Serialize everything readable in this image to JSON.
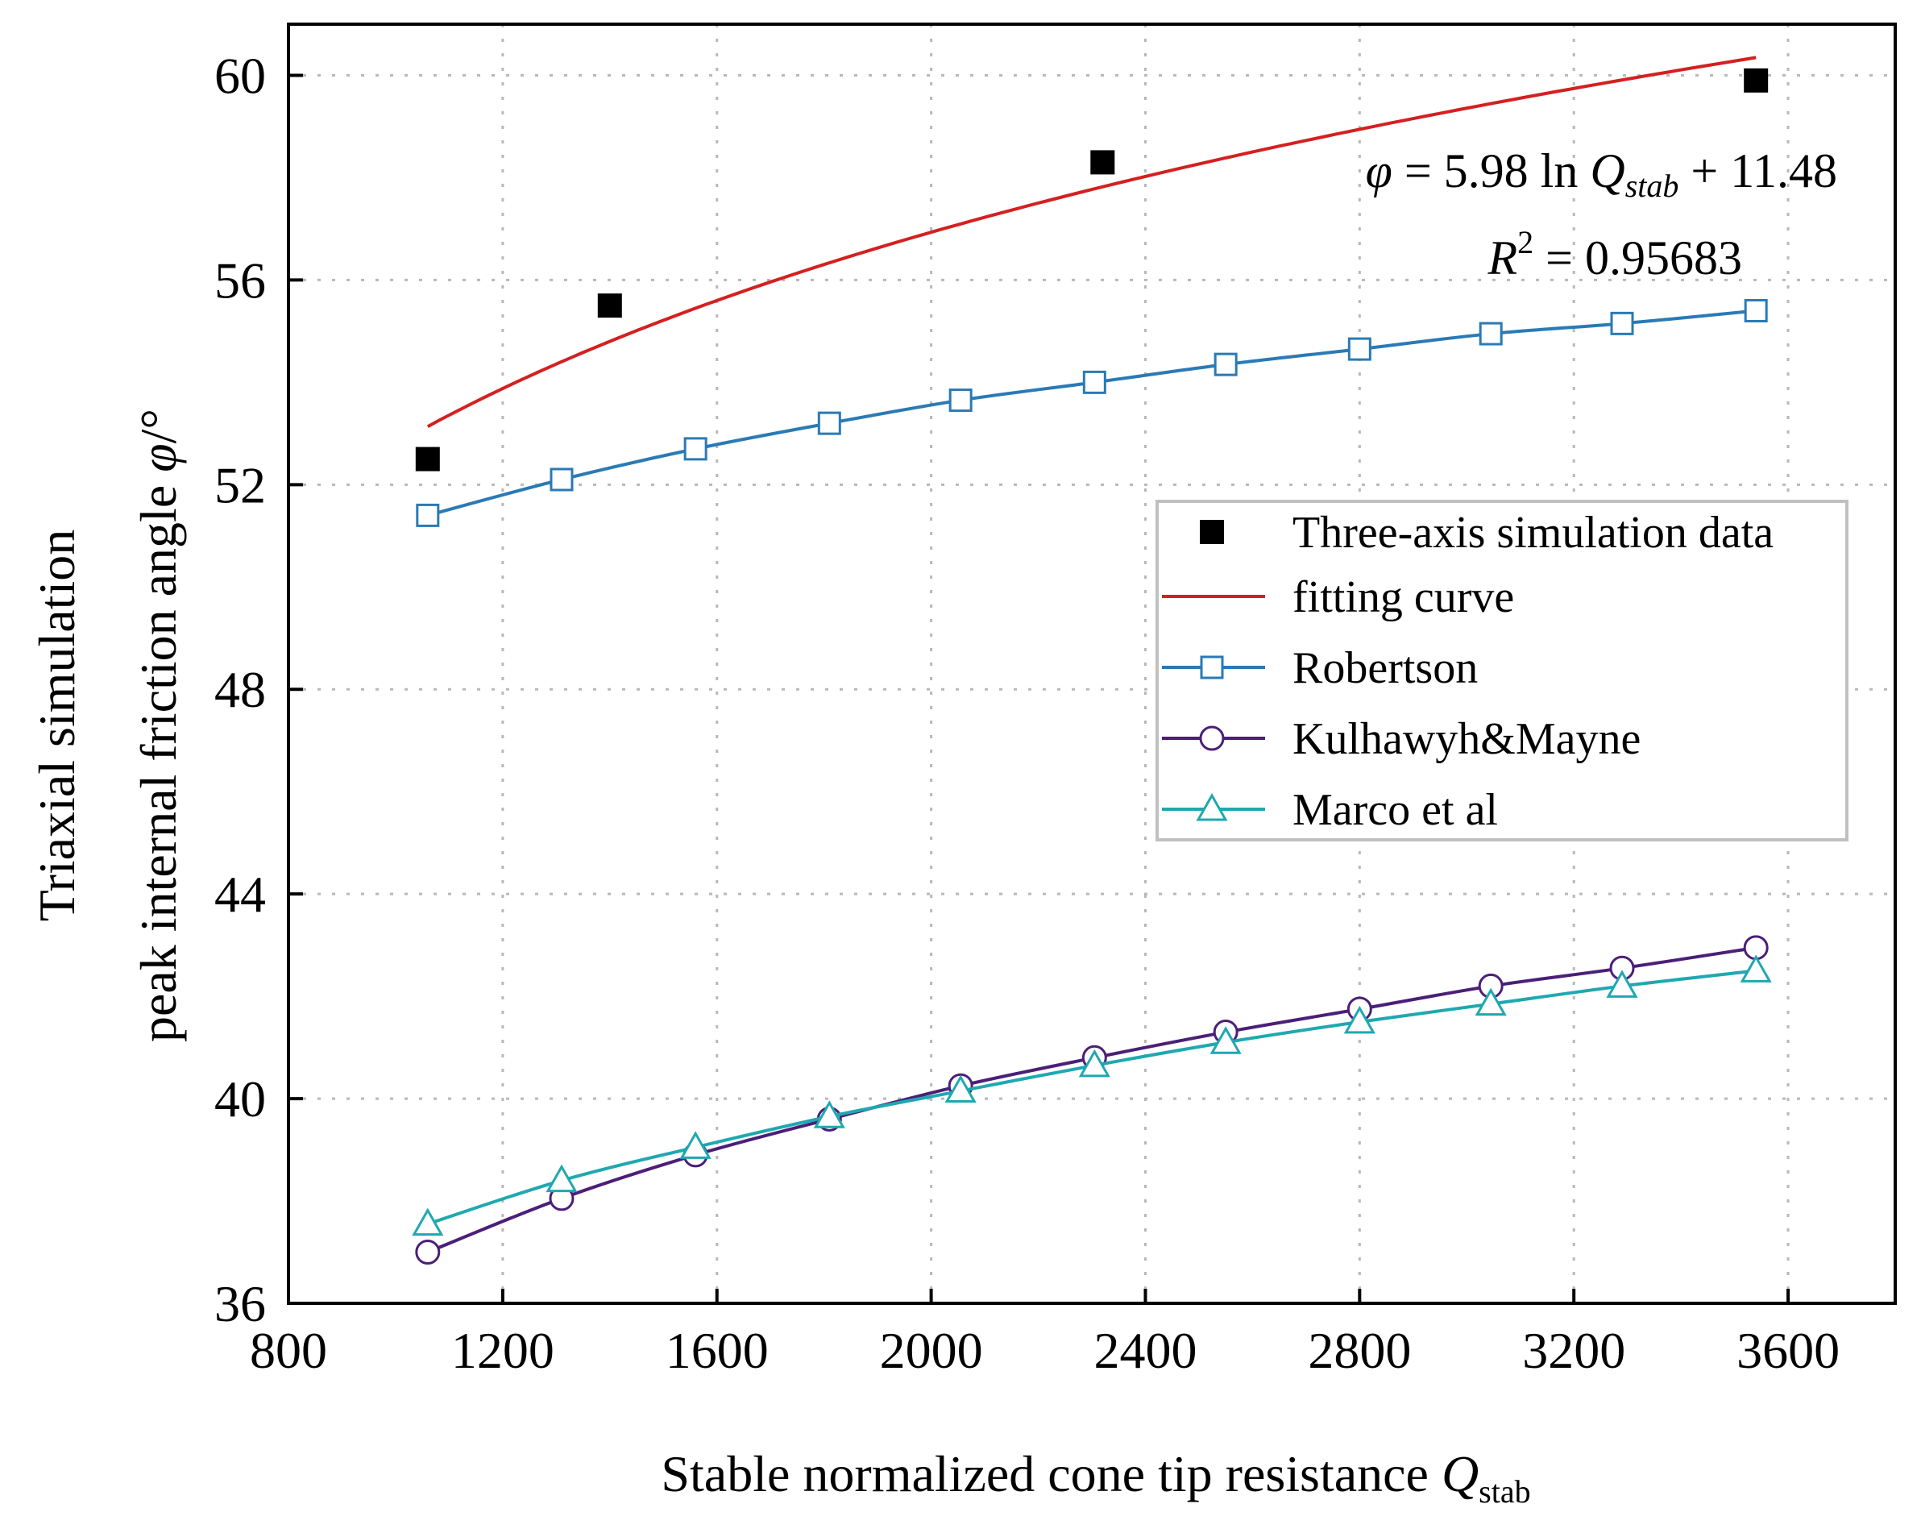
{
  "chart_data": {
    "type": "line",
    "title": "",
    "xlabel": "Stable normalized cone tip resistance",
    "xlabel_symbol": "Q",
    "xlabel_sub": "stab",
    "ylabel_line1": "Triaxial simulation",
    "ylabel_line2": "peak internal friction angle",
    "ylabel_symbol": "φ",
    "ylabel_unit": "/°",
    "xlim": [
      800,
      3800
    ],
    "ylim": [
      36,
      61
    ],
    "xticks": [
      800,
      1200,
      1600,
      2000,
      2400,
      2800,
      3200,
      3600
    ],
    "yticks": [
      36,
      40,
      44,
      48,
      52,
      56,
      60
    ],
    "grid": true,
    "legend_position": "right",
    "annotation": {
      "eq_lhs": "φ",
      "eq_rhs_1": " = 5.98 ln ",
      "eq_q": "Q",
      "eq_sub": "stab",
      "eq_rhs_2": " + 11.48",
      "r2_r": "R",
      "r2_exp": "2",
      "r2_rhs": " = 0.95683"
    },
    "series": [
      {
        "name": "Three-axis simulation data",
        "kind": "scatter",
        "color": "#000000",
        "x": [
          1060,
          1400,
          2320,
          3540
        ],
        "y": [
          52.5,
          55.5,
          58.3,
          59.9
        ]
      },
      {
        "name": "fitting curve",
        "kind": "function",
        "color": "#d42020",
        "a": 5.98,
        "b": 11.48,
        "x_range": [
          1060,
          3540
        ]
      },
      {
        "name": "Robertson",
        "kind": "line-marker",
        "marker": "square",
        "color": "#2a7ab5",
        "x": [
          1060,
          1310,
          1560,
          1810,
          2055,
          2305,
          2550,
          2800,
          3045,
          3290,
          3540
        ],
        "y": [
          51.4,
          52.1,
          52.7,
          53.2,
          53.65,
          54.0,
          54.35,
          54.65,
          54.95,
          55.15,
          55.4
        ]
      },
      {
        "name": "Kulhawyh&Mayne",
        "kind": "line-marker",
        "marker": "circle",
        "color": "#4b1f78",
        "x": [
          1060,
          1310,
          1560,
          1810,
          2055,
          2305,
          2550,
          2800,
          3045,
          3290,
          3540
        ],
        "y": [
          37.0,
          38.05,
          38.9,
          39.6,
          40.25,
          40.8,
          41.3,
          41.75,
          42.2,
          42.55,
          42.95
        ]
      },
      {
        "name": "Marco et al",
        "kind": "line-marker",
        "marker": "triangle",
        "color": "#1fa8b0",
        "x": [
          1060,
          1310,
          1560,
          1810,
          2055,
          2305,
          2550,
          2800,
          3045,
          3290,
          3540
        ],
        "y": [
          37.55,
          38.4,
          39.05,
          39.65,
          40.15,
          40.65,
          41.1,
          41.5,
          41.85,
          42.2,
          42.5
        ]
      }
    ]
  }
}
